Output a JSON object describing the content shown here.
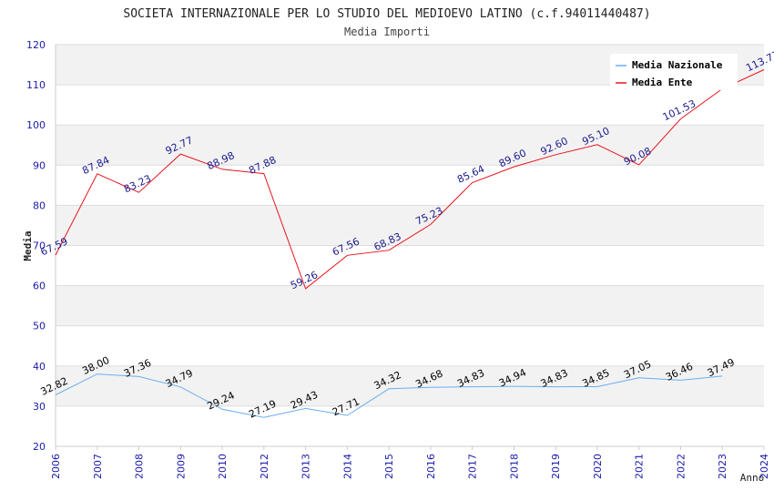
{
  "chart_data": {
    "type": "line",
    "title": "SOCIETA INTERNAZIONALE PER LO STUDIO DEL MEDIOEVO LATINO (c.f.94011440487)",
    "subtitle": "Media Importi",
    "xlabel": "Anno",
    "ylabel": "Media",
    "ylim": [
      20,
      120
    ],
    "yticks": [
      "20",
      "30",
      "40",
      "50",
      "60",
      "70",
      "80",
      "90",
      "100",
      "110",
      "120"
    ],
    "categories": [
      "2006",
      "2007",
      "2008",
      "2009",
      "2010",
      "2012",
      "2013",
      "2014",
      "2015",
      "2016",
      "2017",
      "2018",
      "2019",
      "2020",
      "2021",
      "2022",
      "2023",
      "2024"
    ],
    "legend_position": "top-right",
    "series": [
      {
        "name": "Media Nazionale",
        "color": "#6aaef0",
        "values": [
          32.82,
          38.0,
          37.36,
          34.79,
          29.24,
          27.19,
          29.43,
          27.71,
          34.32,
          34.68,
          34.83,
          34.94,
          34.83,
          34.85,
          37.05,
          36.46,
          37.49,
          null
        ],
        "labels": [
          "32.82",
          "38.00",
          "37.36",
          "34.79",
          "29.24",
          "27.19",
          "29.43",
          "27.71",
          "34.32",
          "34.68",
          "34.83",
          "34.94",
          "34.83",
          "34.85",
          "37.05",
          "36.46",
          "37.49",
          null
        ]
      },
      {
        "name": "Media Ente",
        "color": "#e8141c",
        "values": [
          67.59,
          87.84,
          83.23,
          92.77,
          88.98,
          87.88,
          59.26,
          67.56,
          68.83,
          75.23,
          85.64,
          89.6,
          92.6,
          95.1,
          90.08,
          101.53,
          109.0,
          113.77
        ],
        "labels": [
          "67.59",
          "87.84",
          "83.23",
          "92.77",
          "88.98",
          "87.88",
          "59.26",
          "67.56",
          "68.83",
          "75.23",
          "85.64",
          "89.60",
          "92.60",
          "95.10",
          "90.08",
          "101.53",
          null,
          "113.77"
        ]
      }
    ]
  }
}
